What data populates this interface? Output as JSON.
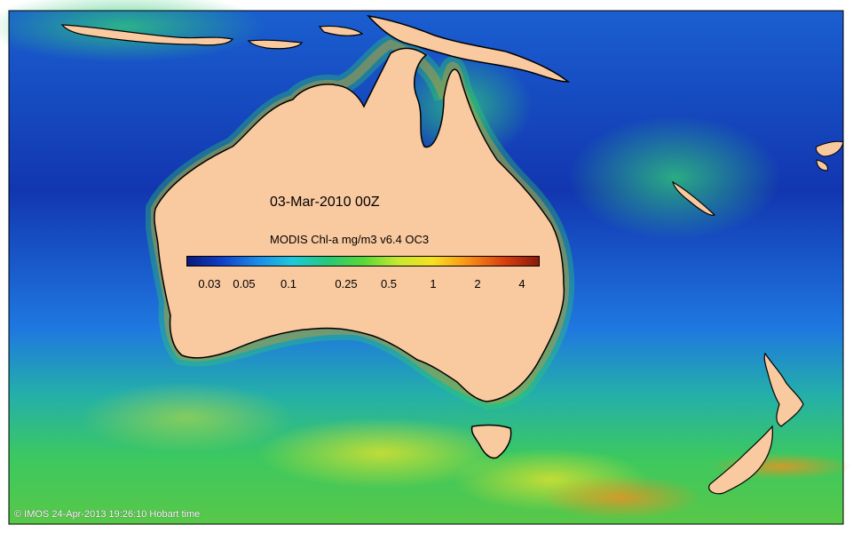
{
  "map": {
    "date_label": "03-Mar-2010 00Z",
    "colorbar": {
      "title": "MODIS Chl-a mg/m3 v6.4 OC3",
      "ticks": [
        "0.03",
        "0.05",
        "0.1",
        "0.25",
        "0.5",
        "1",
        "2",
        "4"
      ],
      "colors": [
        "#0a1a7a",
        "#1040c8",
        "#1c8ce8",
        "#20c8d8",
        "#28c878",
        "#58d838",
        "#c8e830",
        "#f8e020",
        "#f89018",
        "#d84010",
        "#8a1a0a"
      ]
    },
    "credit": "© IMOS 24-Apr-2013 19:26:10 Hobart time",
    "colors": {
      "land": "#f9c9a0",
      "deep_ocean": "#0f2a9a",
      "coastline": "#000000"
    }
  }
}
